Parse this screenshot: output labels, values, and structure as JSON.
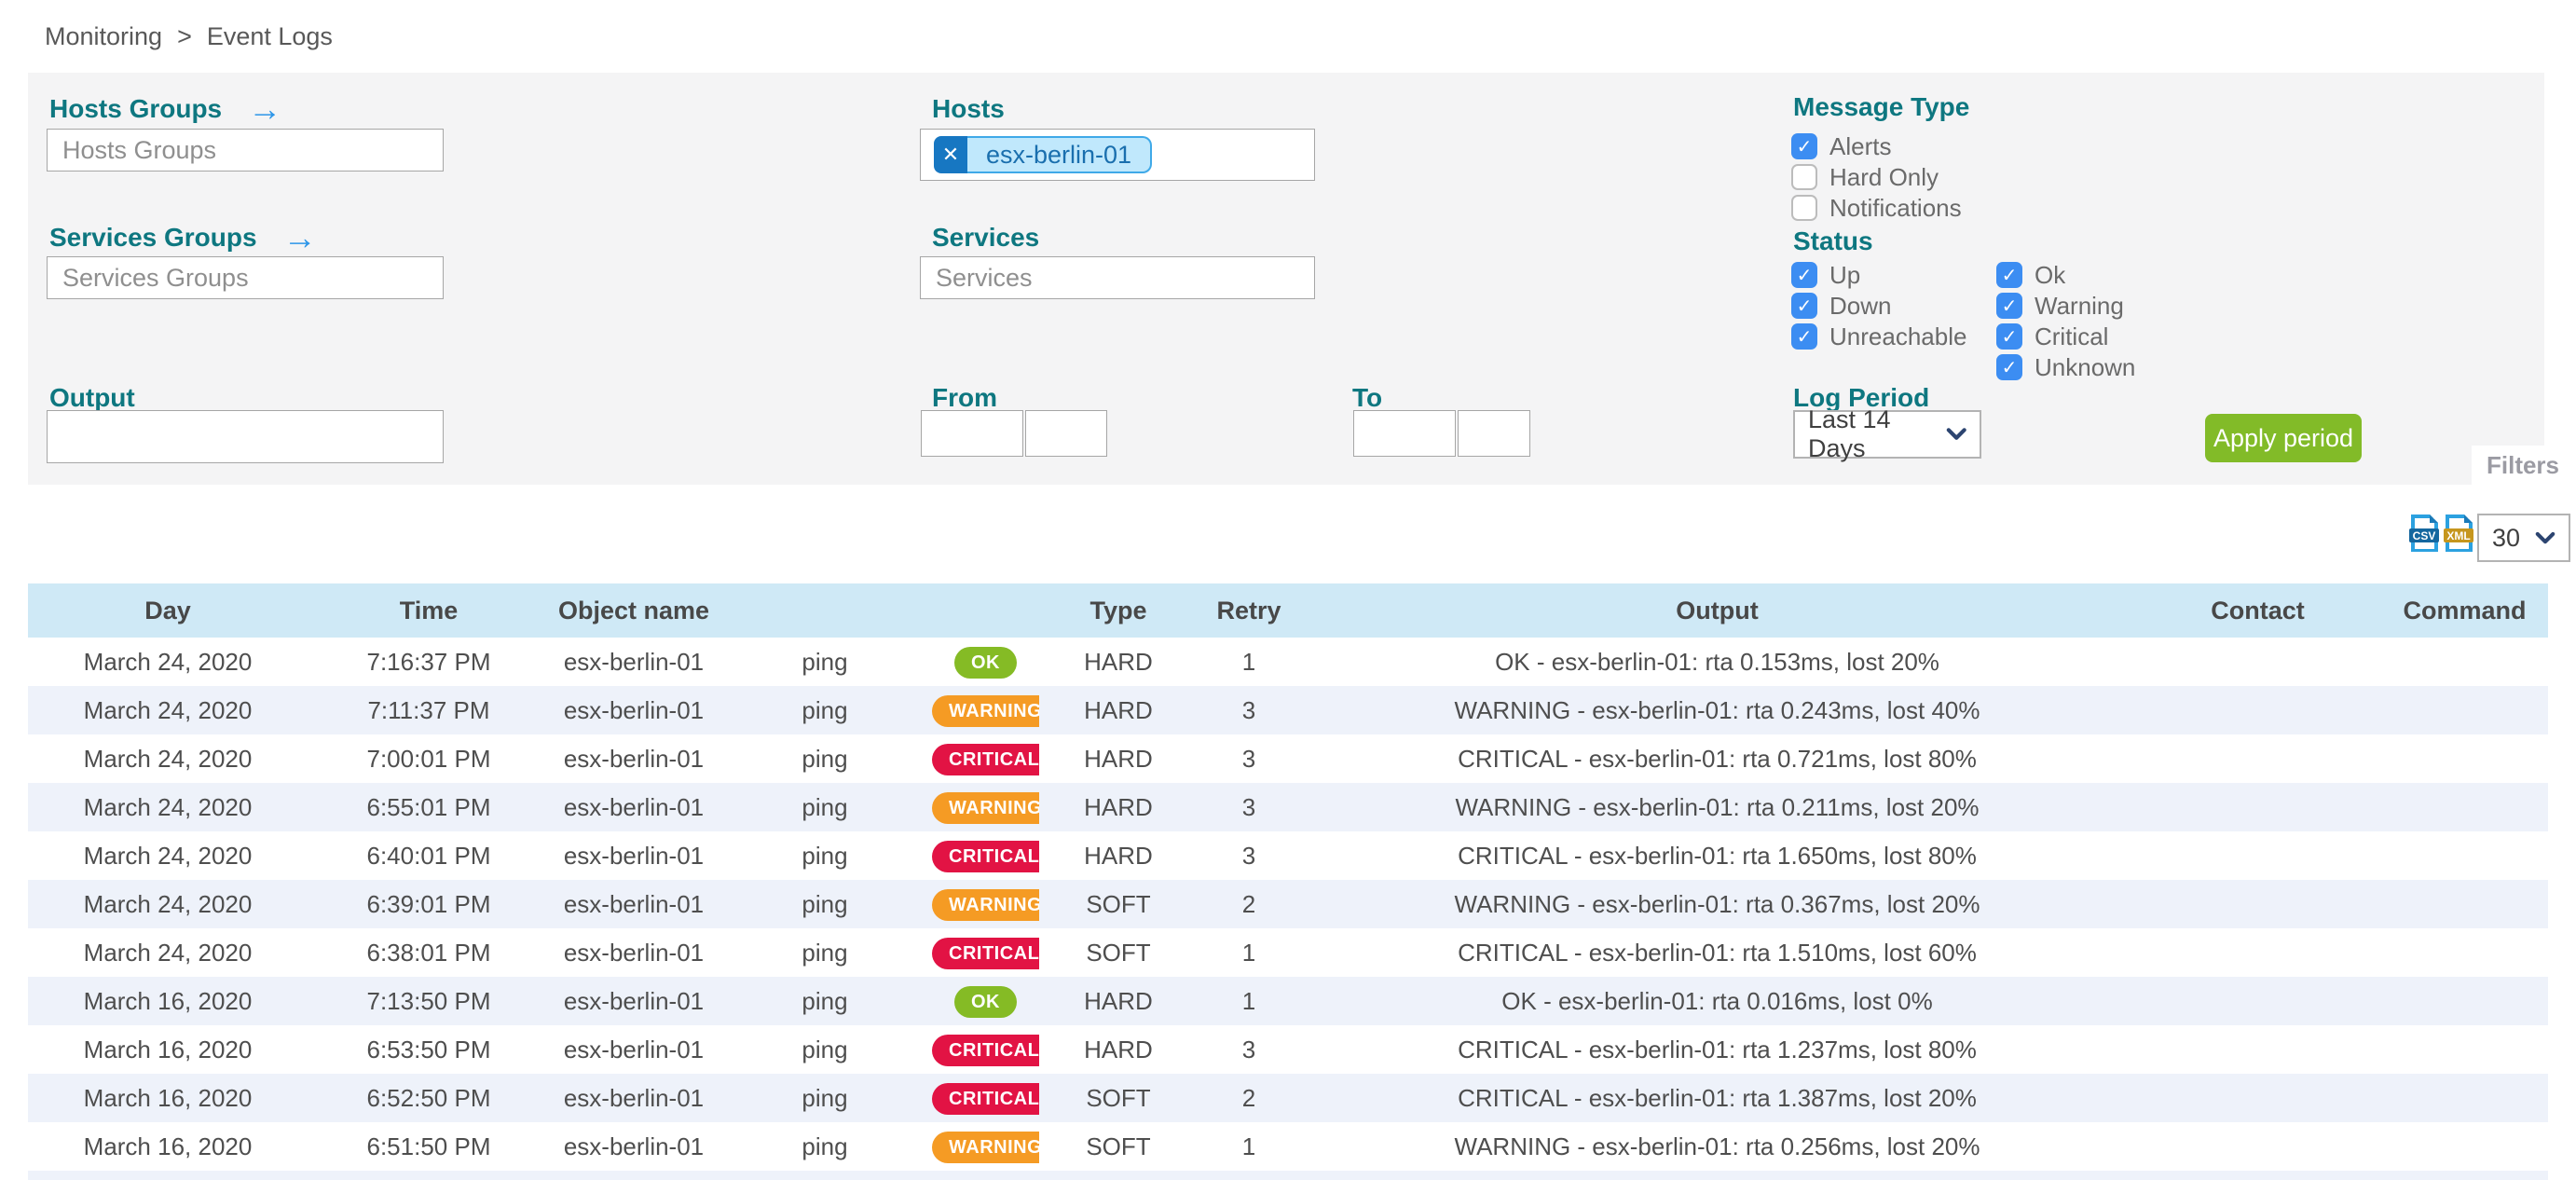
{
  "breadcrumb": {
    "section": "Monitoring",
    "separator": ">",
    "page": "Event Logs"
  },
  "filters": {
    "hosts_groups": {
      "label": "Hosts Groups",
      "placeholder": "Hosts Groups",
      "arrow_icon": "→"
    },
    "services_groups": {
      "label": "Services Groups",
      "placeholder": "Services Groups",
      "arrow_icon": "→"
    },
    "hosts": {
      "label": "Hosts",
      "chip": "esx-berlin-01",
      "chip_remove_icon": "✕"
    },
    "services": {
      "label": "Services",
      "placeholder": "Services"
    },
    "output": {
      "label": "Output",
      "value": ""
    },
    "from": {
      "label": "From",
      "date_value": "",
      "time_value": ""
    },
    "to": {
      "label": "To",
      "date_value": "",
      "time_value": ""
    },
    "message_type": {
      "label": "Message Type",
      "options": [
        {
          "label": "Alerts",
          "checked": true
        },
        {
          "label": "Hard Only",
          "checked": false
        },
        {
          "label": "Notifications",
          "checked": false
        }
      ]
    },
    "status": {
      "label": "Status",
      "col1": [
        {
          "label": "Up",
          "checked": true
        },
        {
          "label": "Down",
          "checked": true
        },
        {
          "label": "Unreachable",
          "checked": true
        }
      ],
      "col2": [
        {
          "label": "Ok",
          "checked": true
        },
        {
          "label": "Warning",
          "checked": true
        },
        {
          "label": "Critical",
          "checked": true
        },
        {
          "label": "Unknown",
          "checked": true
        }
      ]
    },
    "log_period": {
      "label": "Log Period",
      "selected": "Last 14 Days"
    },
    "apply_button": "Apply period",
    "filters_tab": "Filters"
  },
  "toolbar": {
    "csv_label": "CSV",
    "xml_label": "XML",
    "page_size": "30"
  },
  "table": {
    "columns": [
      "Day",
      "Time",
      "Object name",
      "",
      "",
      "Type",
      "Retry",
      "Output",
      "Contact",
      "Command"
    ],
    "rows": [
      {
        "day": "March 24, 2020",
        "time": "7:16:37 PM",
        "object": "esx-berlin-01",
        "service": "ping",
        "status": "OK",
        "type": "HARD",
        "retry": "1",
        "output": "OK - esx-berlin-01: rta 0.153ms, lost 20%",
        "contact": "",
        "command": ""
      },
      {
        "day": "March 24, 2020",
        "time": "7:11:37 PM",
        "object": "esx-berlin-01",
        "service": "ping",
        "status": "WARNING",
        "type": "HARD",
        "retry": "3",
        "output": "WARNING - esx-berlin-01: rta 0.243ms, lost 40%",
        "contact": "",
        "command": ""
      },
      {
        "day": "March 24, 2020",
        "time": "7:00:01 PM",
        "object": "esx-berlin-01",
        "service": "ping",
        "status": "CRITICAL",
        "type": "HARD",
        "retry": "3",
        "output": "CRITICAL - esx-berlin-01: rta 0.721ms, lost 80%",
        "contact": "",
        "command": ""
      },
      {
        "day": "March 24, 2020",
        "time": "6:55:01 PM",
        "object": "esx-berlin-01",
        "service": "ping",
        "status": "WARNING",
        "type": "HARD",
        "retry": "3",
        "output": "WARNING - esx-berlin-01: rta 0.211ms, lost 20%",
        "contact": "",
        "command": ""
      },
      {
        "day": "March 24, 2020",
        "time": "6:40:01 PM",
        "object": "esx-berlin-01",
        "service": "ping",
        "status": "CRITICAL",
        "type": "HARD",
        "retry": "3",
        "output": "CRITICAL - esx-berlin-01: rta 1.650ms, lost 80%",
        "contact": "",
        "command": ""
      },
      {
        "day": "March 24, 2020",
        "time": "6:39:01 PM",
        "object": "esx-berlin-01",
        "service": "ping",
        "status": "WARNING",
        "type": "SOFT",
        "retry": "2",
        "output": "WARNING - esx-berlin-01: rta 0.367ms, lost 20%",
        "contact": "",
        "command": ""
      },
      {
        "day": "March 24, 2020",
        "time": "6:38:01 PM",
        "object": "esx-berlin-01",
        "service": "ping",
        "status": "CRITICAL",
        "type": "SOFT",
        "retry": "1",
        "output": "CRITICAL - esx-berlin-01: rta 1.510ms, lost 60%",
        "contact": "",
        "command": ""
      },
      {
        "day": "March 16, 2020",
        "time": "7:13:50 PM",
        "object": "esx-berlin-01",
        "service": "ping",
        "status": "OK",
        "type": "HARD",
        "retry": "1",
        "output": "OK - esx-berlin-01: rta 0.016ms, lost 0%",
        "contact": "",
        "command": ""
      },
      {
        "day": "March 16, 2020",
        "time": "6:53:50 PM",
        "object": "esx-berlin-01",
        "service": "ping",
        "status": "CRITICAL",
        "type": "HARD",
        "retry": "3",
        "output": "CRITICAL - esx-berlin-01: rta 1.237ms, lost 80%",
        "contact": "",
        "command": ""
      },
      {
        "day": "March 16, 2020",
        "time": "6:52:50 PM",
        "object": "esx-berlin-01",
        "service": "ping",
        "status": "CRITICAL",
        "type": "SOFT",
        "retry": "2",
        "output": "CRITICAL - esx-berlin-01: rta 1.387ms, lost 20%",
        "contact": "",
        "command": ""
      },
      {
        "day": "March 16, 2020",
        "time": "6:51:50 PM",
        "object": "esx-berlin-01",
        "service": "ping",
        "status": "WARNING",
        "type": "SOFT",
        "retry": "1",
        "output": "WARNING - esx-berlin-01: rta 0.256ms, lost 20%",
        "contact": "",
        "command": ""
      }
    ]
  },
  "colors": {
    "label_teal": "#0e7780",
    "arrow_blue": "#2e96e8",
    "checkbox_blue": "#3c8df2",
    "chip_dark_blue": "#1777c2",
    "chip_light_blue": "#c0e8fc",
    "chip_border_blue": "#3fa9e8",
    "chip_text_blue": "#1a6fae",
    "apply_green": "#82bb28",
    "header_blue": "#cfe9f6",
    "row_alt": "#eef2fa",
    "ok_green": "#85bb25",
    "warning_orange": "#f59b24",
    "critical_red": "#e21344",
    "csv_band": "#15679f",
    "xml_band": "#c6961d",
    "icon_blue": "#2ba1e0"
  }
}
